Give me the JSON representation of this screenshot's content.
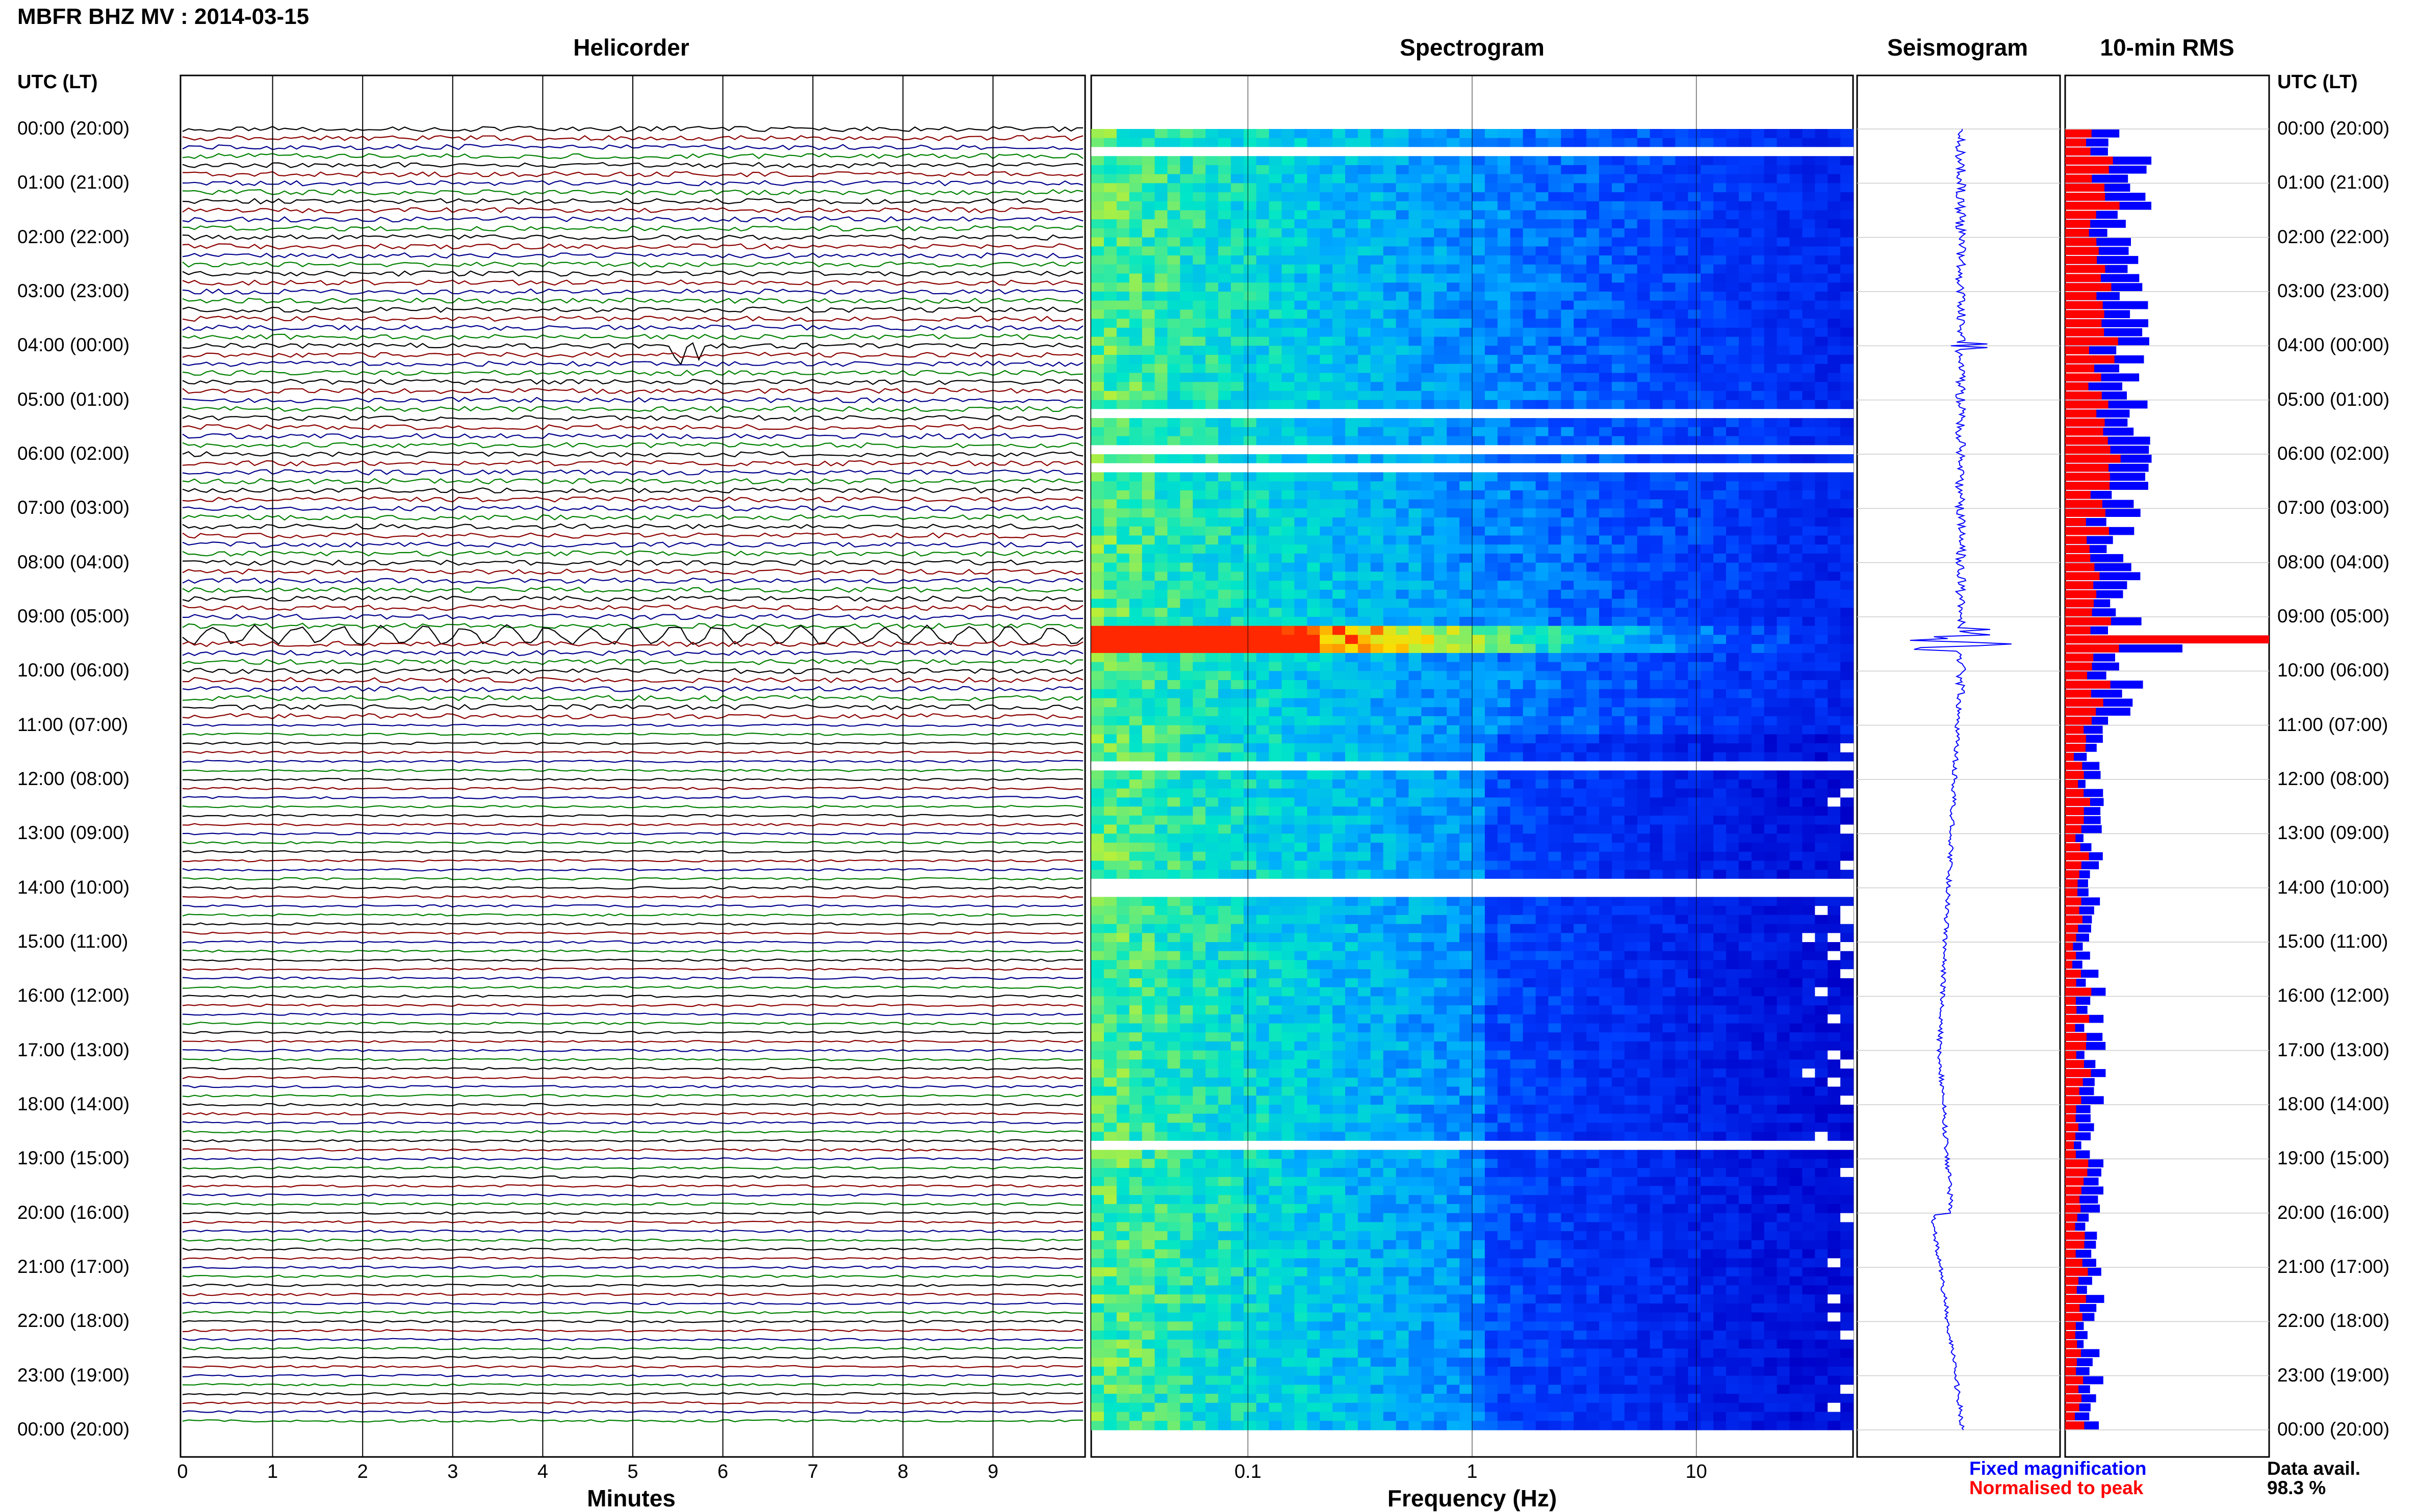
{
  "title": "MBFR BHZ MV : 2014-03-15",
  "panels": {
    "helicorder": "Helicorder",
    "spectrogram": "Spectrogram",
    "seismogram": "Seismogram",
    "rms": "10-min RMS"
  },
  "utc_header": "UTC (LT)",
  "row_labels": [
    "00:00 (20:00)",
    "01:00 (21:00)",
    "02:00 (22:00)",
    "03:00 (23:00)",
    "04:00 (00:00)",
    "05:00 (01:00)",
    "06:00 (02:00)",
    "07:00 (03:00)",
    "08:00 (04:00)",
    "09:00 (05:00)",
    "10:00 (06:00)",
    "11:00 (07:00)",
    "12:00 (08:00)",
    "13:00 (09:00)",
    "14:00 (10:00)",
    "15:00 (11:00)",
    "16:00 (12:00)",
    "17:00 (13:00)",
    "18:00 (14:00)",
    "19:00 (15:00)",
    "20:00 (16:00)",
    "21:00 (17:00)",
    "22:00 (18:00)",
    "23:00 (19:00)",
    "00:00 (20:00)"
  ],
  "x_axes": {
    "minutes_label": "Minutes",
    "minutes_ticks": [
      "0",
      "1",
      "2",
      "3",
      "4",
      "5",
      "6",
      "7",
      "8",
      "9"
    ],
    "frequency_label": "Frequency (Hz)",
    "frequency_ticks": [
      "0.1",
      "1",
      "10"
    ]
  },
  "legend": {
    "fixed": "Fixed magnification",
    "normalised": "Normalised to peak",
    "fixed_color": "#0000ff",
    "normalised_color": "#ff0000"
  },
  "data_avail": {
    "label": "Data avail.",
    "value": "98.3 %"
  },
  "colors": {
    "trace_cycle": [
      "#000000",
      "#8b0000",
      "#00008b",
      "#008000"
    ],
    "spectrogram_low": "#0000cc",
    "spectrogram_high": "#ff0000"
  },
  "chart_data": [
    {
      "type": "line",
      "name": "helicorder",
      "xlabel": "Minutes",
      "xlim": [
        0,
        10
      ],
      "rows_per_hour": 6,
      "hours": 24,
      "notable_events": [
        {
          "utc": "04:00",
          "minute": 5.7,
          "kind": "large transient"
        },
        {
          "utc": "09:20",
          "minute": 0,
          "kind": "long-period oscillation across full row"
        }
      ]
    },
    {
      "type": "heatmap",
      "name": "spectrogram",
      "xlabel": "Frequency (Hz)",
      "xscale": "log",
      "xlim": [
        0.02,
        50
      ],
      "peak": {
        "utc": "09:20",
        "frequency_hz": 0.06
      }
    },
    {
      "type": "line",
      "name": "seismogram",
      "note": "24-hour trace, spike near 09:20"
    },
    {
      "type": "bar",
      "name": "10-min RMS",
      "orientation": "horizontal",
      "peak_utc": "09:20",
      "series": [
        {
          "name": "Fixed magnification",
          "color": "#0000ff"
        },
        {
          "name": "Normalised to peak",
          "color": "#ff0000"
        }
      ]
    }
  ]
}
